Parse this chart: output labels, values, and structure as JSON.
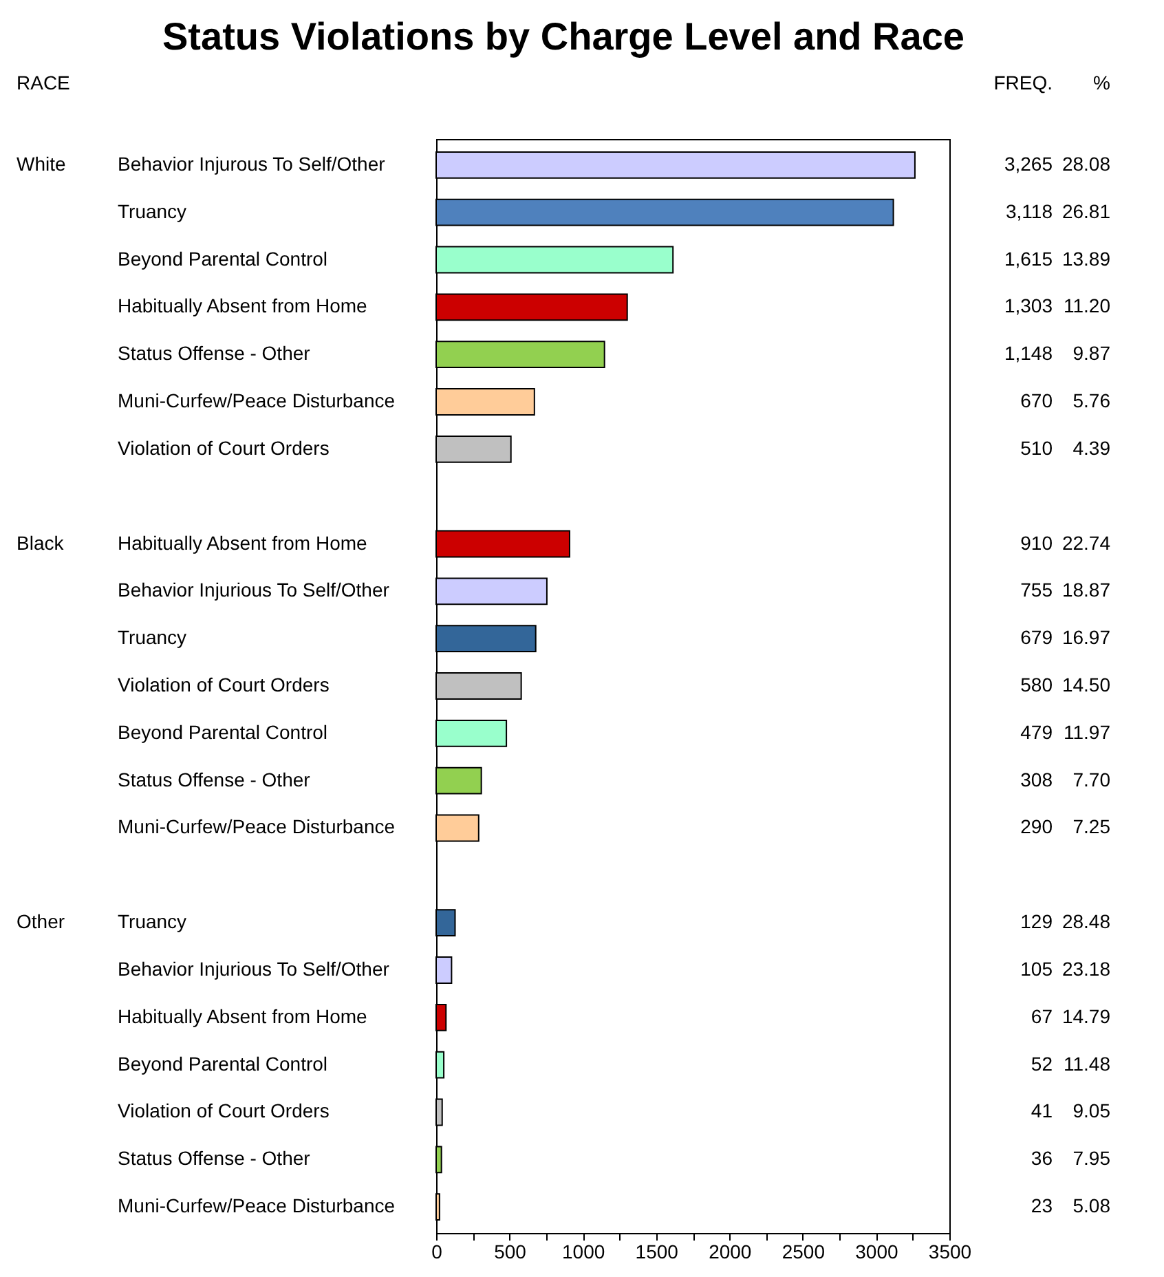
{
  "chart_data": {
    "type": "bar",
    "orientation": "horizontal",
    "title": "Status Violations by Charge Level and Race",
    "categories": [
      "Behavior Injurous To Self/Other",
      "Truancy",
      "Beyond Parental Control",
      "Habitually Absent from Home",
      "Status Offense - Other",
      "Muni-Curfew/Peace Disturbance",
      "Violation of Court Orders",
      null,
      "Habitually Absent from Home",
      "Behavior Injurious To Self/Other",
      "Truancy",
      "Violation of Court Orders",
      "Beyond Parental Control",
      "Status Offense - Other",
      "Muni-Curfew/Peace Disturbance",
      null,
      "Truancy",
      "Behavior Injurious To Self/Other",
      "Habitually Absent from Home",
      "Beyond Parental Control",
      "Violation of Court Orders",
      "Status Offense - Other",
      "Muni-Curfew/Peace Disturbance"
    ],
    "values": [
      3265,
      3118,
      1615,
      1303,
      1148,
      670,
      510,
      null,
      910,
      755,
      679,
      580,
      479,
      308,
      290,
      null,
      129,
      105,
      67,
      52,
      41,
      36,
      23
    ],
    "value_labels": [
      "3,265",
      "3,118",
      "1,615",
      "1,303",
      "1,148",
      "670",
      "510",
      null,
      "910",
      "755",
      "679",
      "580",
      "479",
      "308",
      "290",
      null,
      "129",
      "105",
      "67",
      "52",
      "41",
      "36",
      "23"
    ],
    "colors": [
      "#ccccff",
      "#4f81bd",
      "#99ffcc",
      "#cc0000",
      "#92d050",
      "#ffcc99",
      "#c0c0c0",
      null,
      "#cc0000",
      "#ccccff",
      "#336699",
      "#c0c0c0",
      "#99ffcc",
      "#92d050",
      "#ffcc99",
      null,
      "#336699",
      "#ccccff",
      "#cc0000",
      "#99ffcc",
      "#c0c0c0",
      "#92d050",
      "#ffcc99"
    ],
    "xlim": [
      0,
      3500
    ],
    "xticks": [
      0,
      {
        "value": 250,
        "label": null
      },
      500,
      {
        "value": 750,
        "label": null
      },
      1000,
      {
        "value": 1250,
        "label": null
      },
      1500,
      {
        "value": 1750,
        "label": null
      },
      2000,
      {
        "value": 2250,
        "label": null
      },
      2500,
      {
        "value": 2750,
        "label": null
      },
      3000,
      {
        "value": 3250,
        "label": null
      },
      3500
    ],
    "annotations": [
      "RACE",
      "FREQ.",
      "%",
      "White",
      "Black",
      "Other",
      "28.08",
      "26.81",
      "13.89",
      "11.20",
      "9.87",
      "5.76",
      "4.39",
      "22.74",
      "18.87",
      "16.97",
      "14.50",
      "11.97",
      "7.70",
      "7.25",
      "28.48",
      "23.18",
      "14.79",
      "11.48",
      "9.05",
      "7.95",
      "5.08"
    ]
  }
}
